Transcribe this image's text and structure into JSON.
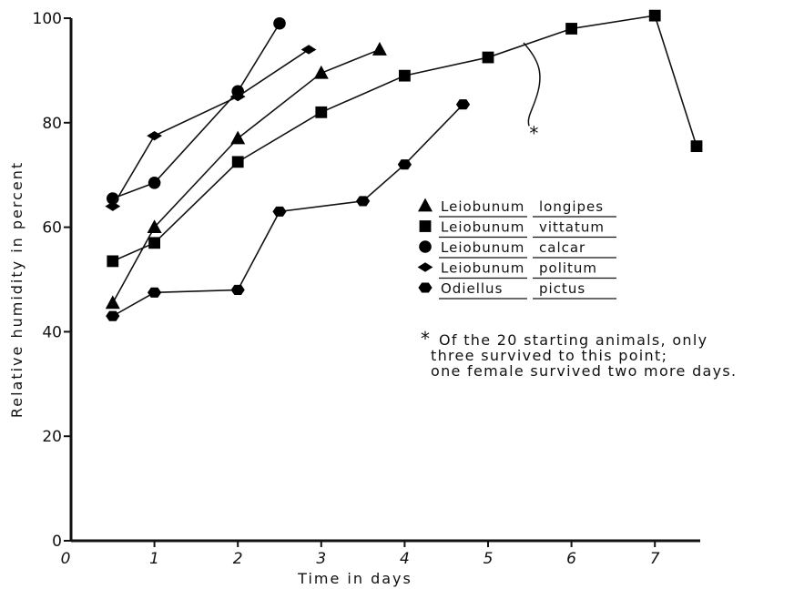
{
  "chart_data": {
    "type": "line",
    "title": "",
    "xlabel": "Time in days",
    "ylabel": "Relative humidity in percent",
    "xlim": [
      0,
      7.5
    ],
    "ylim": [
      0,
      100
    ],
    "x_ticks": [
      0,
      1,
      2,
      3,
      4,
      5,
      6,
      7
    ],
    "x_tick_labels": [
      "0",
      "1",
      "2",
      "3",
      "4",
      "5",
      "6",
      "7"
    ],
    "y_ticks": [
      0,
      20,
      40,
      60,
      80,
      100
    ],
    "y_tick_labels": [
      "0",
      "20",
      "40",
      "60",
      "80",
      "100"
    ],
    "grid": false,
    "legend_position": "right",
    "series": [
      {
        "name": "Leiobunum longipes",
        "genus": "Leiobunum",
        "species": "longipes",
        "marker": "triangle",
        "x": [
          0.5,
          1,
          2,
          3,
          3.7
        ],
        "y": [
          45.5,
          60,
          77,
          89.5,
          94
        ]
      },
      {
        "name": "Leiobunum vittatum",
        "genus": "Leiobunum",
        "species": "vittatum",
        "marker": "square",
        "x": [
          0.5,
          1,
          2,
          3,
          4,
          5,
          6,
          7,
          7.5
        ],
        "y": [
          53.5,
          57,
          72.5,
          82,
          89,
          92.5,
          98,
          100.5,
          75.5
        ]
      },
      {
        "name": "Leiobunum calcar",
        "genus": "Leiobunum",
        "species": "calcar",
        "marker": "circle",
        "x": [
          0.5,
          1,
          2,
          2.5
        ],
        "y": [
          65.5,
          68.5,
          86,
          99
        ]
      },
      {
        "name": "Leiobunum politum",
        "genus": "Leiobunum",
        "species": "politum",
        "marker": "diamond",
        "x": [
          0.5,
          1,
          2,
          2.85
        ],
        "y": [
          64,
          77.5,
          85,
          94
        ]
      },
      {
        "name": "Odiellus pictus",
        "genus": "Odiellus",
        "species": "pictus",
        "marker": "hexagon",
        "x": [
          0.5,
          1,
          2,
          2.5,
          3.5,
          4,
          4.7
        ],
        "y": [
          43,
          47.5,
          48,
          63,
          65,
          72,
          83.5
        ]
      }
    ],
    "annotation": {
      "marker": "*",
      "target_series": "Leiobunum vittatum",
      "point": {
        "x": 5.55,
        "y": 78
      },
      "lines": [
        "Of the 20 starting animals, only",
        "three survived to this point;",
        "one female survived two more days."
      ]
    }
  }
}
